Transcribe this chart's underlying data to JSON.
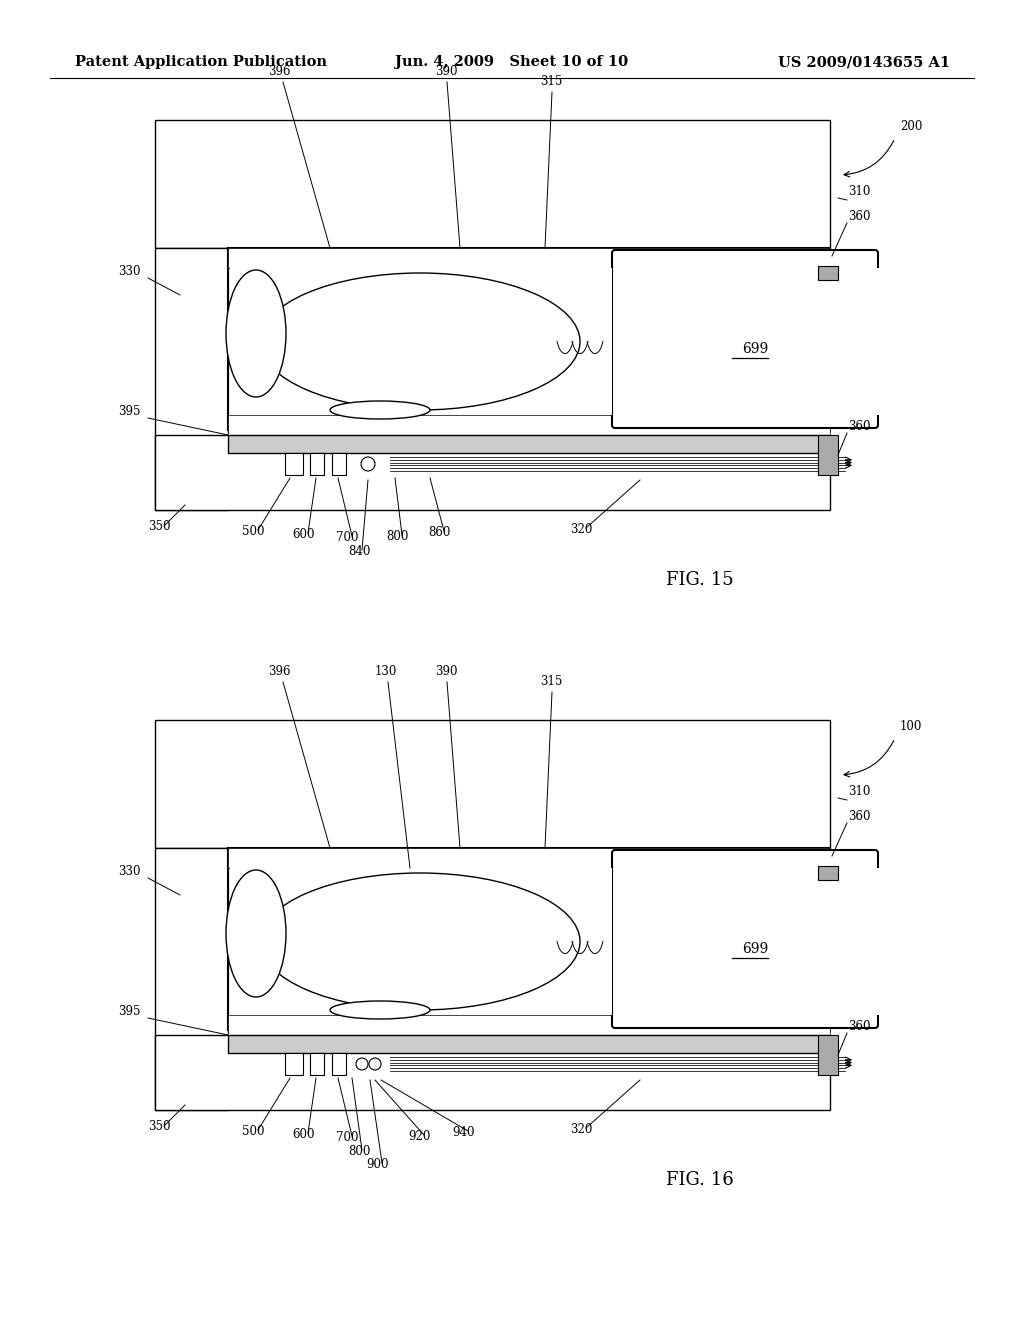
{
  "background_color": "#ffffff",
  "header": {
    "left": "Patent Application Publication",
    "center": "Jun. 4, 2009   Sheet 10 of 10",
    "right": "US 2009/0143655 A1",
    "fontsize": 11
  },
  "fig15_title": "FIG. 15",
  "fig16_title": "FIG. 16"
}
